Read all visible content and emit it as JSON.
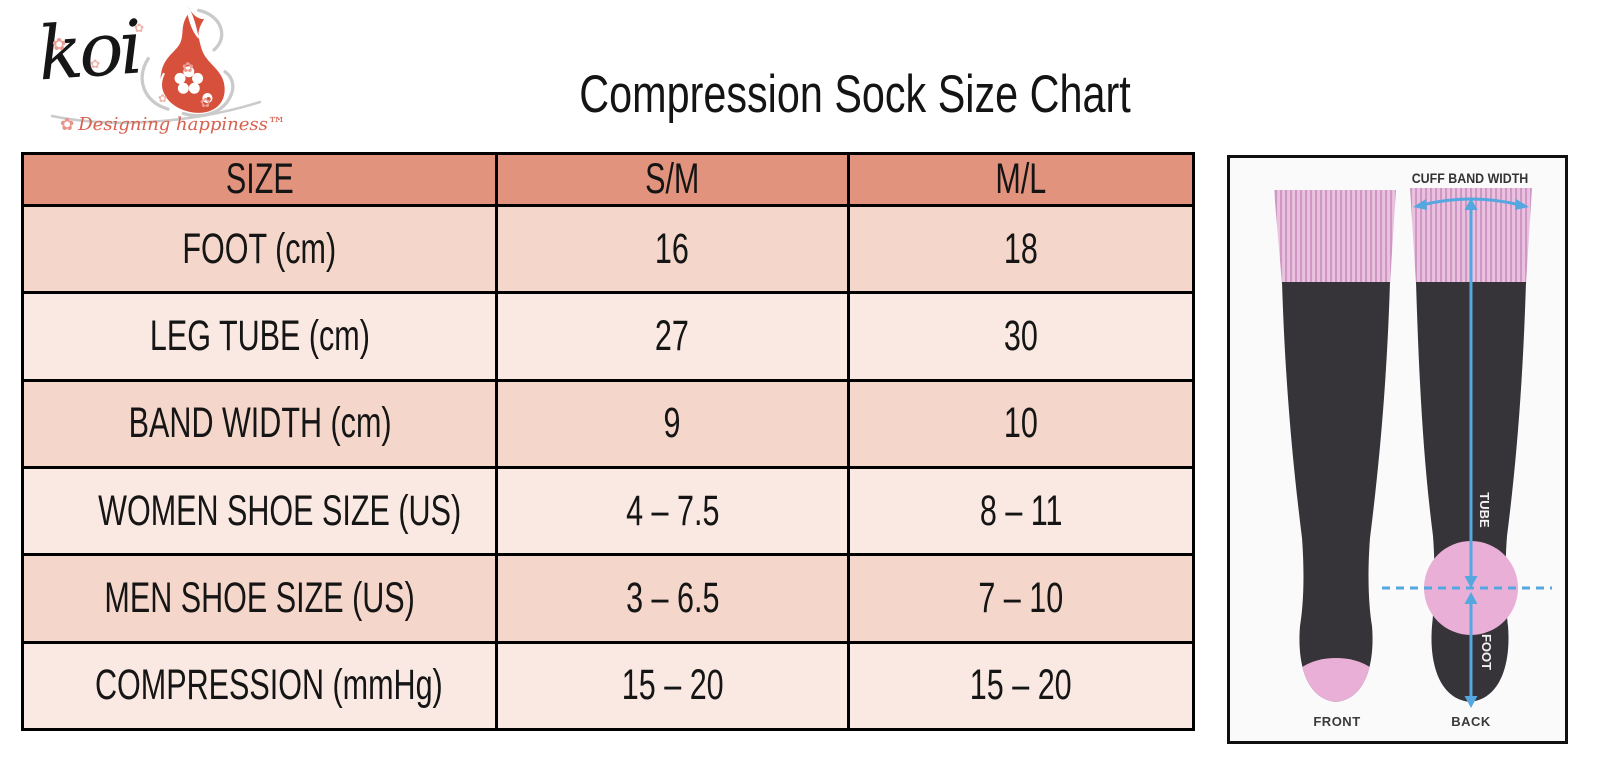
{
  "logo": {
    "brand": "koi",
    "tagline": "Designing happiness™",
    "flower_glyph": "✿"
  },
  "title": "Compression Sock Size Chart",
  "chart_data": {
    "type": "table",
    "title": "Compression Sock Size Chart",
    "columns": [
      "SIZE",
      "S/M",
      "M/L"
    ],
    "rows": [
      [
        "FOOT (cm)",
        "16",
        "18"
      ],
      [
        "LEG TUBE (cm)",
        "27",
        "30"
      ],
      [
        "BAND WIDTH (cm)",
        "9",
        "10"
      ],
      [
        "WOMEN SHOE SIZE (US)",
        "4 – 7.5",
        "8 – 11"
      ],
      [
        "MEN SHOE SIZE (US)",
        "3 – 6.5",
        "7 – 10"
      ],
      [
        "COMPRESSION (mmHg)",
        "15 – 20",
        "15 – 20"
      ]
    ]
  },
  "table": {
    "columns": [
      "SIZE",
      "S/M",
      "M/L"
    ],
    "rows": [
      {
        "label": "FOOT (cm)",
        "sm": "16",
        "ml": "18"
      },
      {
        "label": "LEG TUBE (cm)",
        "sm": "27",
        "ml": "30"
      },
      {
        "label": "BAND WIDTH (cm)",
        "sm": "9",
        "ml": "10"
      },
      {
        "label": "WOMEN SHOE SIZE (US)",
        "sm": "4 – 7.5",
        "ml": "8 – 11"
      },
      {
        "label": "MEN SHOE SIZE (US)",
        "sm": "3 – 6.5",
        "ml": "7 – 10"
      },
      {
        "label": "COMPRESSION (mmHg)",
        "sm": "15 – 20",
        "ml": "15 – 20"
      }
    ]
  },
  "diagram": {
    "cuff_label": "CUFF BAND WIDTH",
    "tube_label": "TUBE",
    "foot_label": "FOOT",
    "front_label": "FRONT",
    "back_label": "BACK"
  },
  "colors": {
    "header_bg": "#E2937E",
    "row_odd_bg": "#F5D6CA",
    "row_even_bg": "#FAE9E2",
    "border": "#000000",
    "arrow_blue": "#55A7E0",
    "sock_dark": "#363438",
    "cuff_pink": "#EAC2DF",
    "heel_pink": "#E9AFD7",
    "brand_red": "#D6503C"
  }
}
